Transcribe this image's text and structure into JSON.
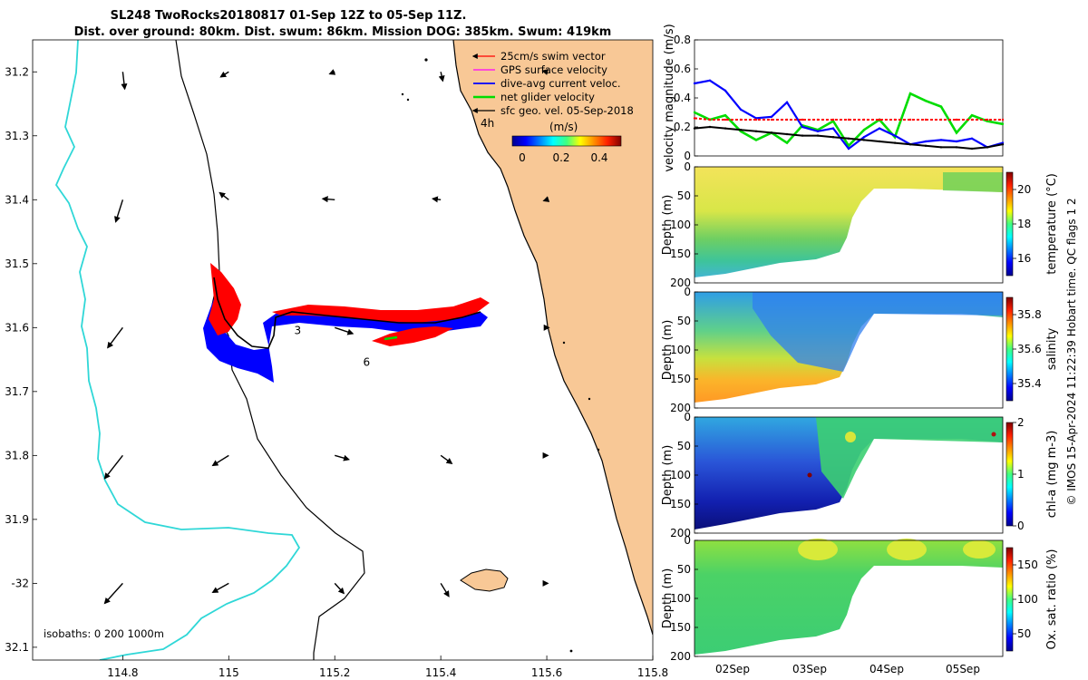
{
  "title": {
    "line1": "SL248 TwoRocks20180817 01-Sep 12Z to 05-Sep 11Z.",
    "line2": "Dist. over ground: 80km. Dist. swum: 86km. Mission DOG: 385km. Swum: 419km"
  },
  "colors": {
    "land": "#f8c896",
    "coast": "#000000",
    "isobath": "#2fd7d7",
    "swim": "#ff0000",
    "gps": "#ff00ff",
    "dive": "#0000ff",
    "net": "#00dd00",
    "geo": "#000000"
  },
  "map": {
    "lon_range": [
      114.63,
      115.8
    ],
    "lat_range": [
      -32.12,
      -31.15
    ],
    "lat_ticks": [
      {
        "v": -31.2,
        "t": "31.2"
      },
      {
        "v": -31.3,
        "t": "31.3"
      },
      {
        "v": -31.4,
        "t": "31.4"
      },
      {
        "v": -31.5,
        "t": "31.5"
      },
      {
        "v": -31.6,
        "t": "31.6"
      },
      {
        "v": -31.7,
        "t": "31.7"
      },
      {
        "v": -31.8,
        "t": "31.8"
      },
      {
        "v": -31.9,
        "t": "31.9"
      },
      {
        "v": -32.0,
        "t": "-32"
      },
      {
        "v": -32.1,
        "t": "32.1"
      }
    ],
    "lon_ticks": [
      {
        "v": 114.8,
        "t": "114.8"
      },
      {
        "v": 115.0,
        "t": "115"
      },
      {
        "v": 115.2,
        "t": "115.2"
      },
      {
        "v": 115.4,
        "t": "115.4"
      },
      {
        "v": 115.6,
        "t": "115.6"
      },
      {
        "v": 115.8,
        "t": "115.8"
      }
    ],
    "legend": {
      "items": [
        {
          "label": "25cm/s swim vector",
          "key": "swim"
        },
        {
          "label": "GPS surface velocity",
          "key": "gps"
        },
        {
          "label": "dive-avg current veloc.",
          "key": "dive"
        },
        {
          "label": "net glider velocity",
          "key": "net"
        },
        {
          "label": "sfc geo. vel. 05-Sep-2018",
          "key": "geo"
        }
      ],
      "time_label": "4h",
      "unit": "(m/s)",
      "cbar_ticks": [
        "0",
        "0.2",
        "0.4"
      ]
    },
    "isobaths_label": "isobaths: 0   200   1000m",
    "day_markers": [
      {
        "text": "3",
        "lon": 115.13,
        "lat": -31.61
      },
      {
        "text": "6",
        "lon": 115.26,
        "lat": -31.66
      }
    ],
    "geo_arrows": [
      {
        "lon": 114.8,
        "lat": -31.2,
        "u": 0.02,
        "v": -0.17
      },
      {
        "lon": 115.0,
        "lat": -31.2,
        "u": -0.08,
        "v": -0.05
      },
      {
        "lon": 115.2,
        "lat": -31.2,
        "u": -0.05,
        "v": -0.02
      },
      {
        "lon": 115.4,
        "lat": -31.2,
        "u": 0.02,
        "v": -0.09
      },
      {
        "lon": 115.6,
        "lat": -31.2,
        "u": -0.04,
        "v": 0.01
      },
      {
        "lon": 114.8,
        "lat": -31.4,
        "u": -0.07,
        "v": -0.22
      },
      {
        "lon": 115.0,
        "lat": -31.4,
        "u": -0.09,
        "v": 0.07
      },
      {
        "lon": 115.2,
        "lat": -31.4,
        "u": -0.12,
        "v": 0.01
      },
      {
        "lon": 115.4,
        "lat": -31.4,
        "u": -0.08,
        "v": 0.01
      },
      {
        "lon": 115.6,
        "lat": -31.4,
        "u": -0.03,
        "v": -0.01
      },
      {
        "lon": 114.8,
        "lat": -31.6,
        "u": -0.15,
        "v": -0.2
      },
      {
        "lon": 115.2,
        "lat": -31.6,
        "u": 0.18,
        "v": -0.06
      },
      {
        "lon": 115.6,
        "lat": -31.6,
        "u": 0.02,
        "v": 0.0
      },
      {
        "lon": 114.8,
        "lat": -31.8,
        "u": -0.18,
        "v": -0.23
      },
      {
        "lon": 115.0,
        "lat": -31.8,
        "u": -0.16,
        "v": -0.1
      },
      {
        "lon": 115.2,
        "lat": -31.8,
        "u": 0.14,
        "v": -0.04
      },
      {
        "lon": 115.4,
        "lat": -31.8,
        "u": 0.11,
        "v": -0.08
      },
      {
        "lon": 115.6,
        "lat": -31.8,
        "u": 0.01,
        "v": 0.0
      },
      {
        "lon": 114.8,
        "lat": -32.0,
        "u": -0.18,
        "v": -0.2
      },
      {
        "lon": 115.0,
        "lat": -32.0,
        "u": -0.16,
        "v": -0.09
      },
      {
        "lon": 115.2,
        "lat": -32.0,
        "u": 0.09,
        "v": -0.1
      },
      {
        "lon": 115.4,
        "lat": -32.0,
        "u": 0.08,
        "v": -0.13
      },
      {
        "lon": 115.6,
        "lat": -32.0,
        "u": 0.01,
        "v": 0.0
      }
    ]
  },
  "chart_data": [
    {
      "type": "line",
      "ylabel": "velocity magnitude (m/s)",
      "ylim": [
        0,
        0.8
      ],
      "yticks": [
        "0",
        "0.2",
        "0.4",
        "0.6",
        "0.8"
      ],
      "x": [
        0,
        0.05,
        0.1,
        0.15,
        0.2,
        0.25,
        0.3,
        0.35,
        0.4,
        0.45,
        0.5,
        0.55,
        0.6,
        0.65,
        0.7,
        0.75,
        0.8,
        0.85,
        0.9,
        0.95,
        1.0
      ],
      "series": [
        {
          "name": "dive-avg current veloc.",
          "color": "#0000ff",
          "values": [
            0.5,
            0.52,
            0.45,
            0.32,
            0.26,
            0.27,
            0.37,
            0.2,
            0.17,
            0.19,
            0.05,
            0.13,
            0.19,
            0.14,
            0.08,
            0.1,
            0.11,
            0.1,
            0.12,
            0.06,
            0.09
          ]
        },
        {
          "name": "net glider velocity",
          "color": "#00dd00",
          "values": [
            0.3,
            0.25,
            0.28,
            0.17,
            0.11,
            0.16,
            0.09,
            0.21,
            0.18,
            0.24,
            0.07,
            0.18,
            0.25,
            0.13,
            0.43,
            0.38,
            0.34,
            0.16,
            0.28,
            0.24,
            0.22
          ]
        },
        {
          "name": "25cm/s swim vector",
          "color": "#ff0000",
          "values": [
            0.26,
            0.25,
            0.25,
            0.25,
            0.25,
            0.25,
            0.25,
            0.25,
            0.25,
            0.25,
            0.25,
            0.25,
            0.25,
            0.25,
            0.25,
            0.25,
            0.25,
            0.25,
            0.25,
            0.25,
            0.25
          ]
        },
        {
          "name": "sfc geo. vel. 05-Sep-2018",
          "color": "#000000",
          "values": [
            0.19,
            0.2,
            0.19,
            0.18,
            0.17,
            0.16,
            0.15,
            0.14,
            0.14,
            0.13,
            0.12,
            0.11,
            0.1,
            0.09,
            0.08,
            0.07,
            0.06,
            0.06,
            0.05,
            0.06,
            0.08
          ]
        }
      ]
    },
    {
      "type": "heatmap",
      "variable": "temperature (°C)",
      "ylabel": "Depth (m)",
      "yticks": [
        "0",
        "50",
        "100",
        "150",
        "200"
      ],
      "cbar_ticks": [
        "16",
        "18",
        "20"
      ],
      "clim": [
        15,
        21
      ],
      "notes": "warm ~20°C upper water offshore, cooling to ~16°C near 180 m; shallow shelf ~19°C after 03Sep"
    },
    {
      "type": "heatmap",
      "variable": "salinity",
      "ylabel": "Depth (m)",
      "yticks": [
        "0",
        "50",
        "100",
        "150",
        "200"
      ],
      "cbar_ticks": [
        "35.4",
        "35.6",
        "35.8"
      ],
      "clim": [
        35.3,
        35.9
      ],
      "notes": "high salinity ~35.8 at depth early in record, ~35.5 surface, fresher inshore"
    },
    {
      "type": "heatmap",
      "variable": "chl-a (mg m-3)",
      "ylabel": "Depth (m)",
      "yticks": [
        "0",
        "50",
        "100",
        "150",
        "200"
      ],
      "cbar_ticks": [
        "0",
        "1",
        "2"
      ],
      "clim": [
        0,
        2
      ],
      "notes": "low chl-a at depth offshore, ~1 mg m-3 on shelf with patches above 1.5"
    },
    {
      "type": "heatmap",
      "variable": "Ox. sat. ratio (%)",
      "ylabel": "Depth (m)",
      "yticks": [
        "0",
        "50",
        "100",
        "150",
        "200"
      ],
      "cbar_ticks": [
        "50",
        "100",
        "150"
      ],
      "clim": [
        25,
        175
      ],
      "notes": "oxygen saturation ~100-110% throughout, ~130% patches near surface"
    }
  ],
  "time_axis": {
    "ticks": [
      "02Sep",
      "03Sep",
      "04Sep",
      "05Sep"
    ]
  },
  "footer": "© IMOS 15-Apr-2024 11:22:39 Hobart time. QC flags 1  2"
}
